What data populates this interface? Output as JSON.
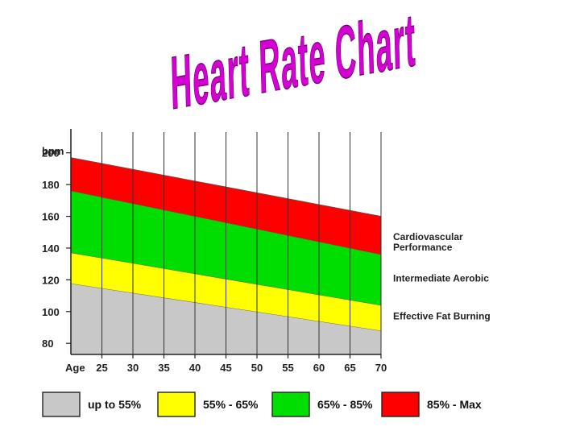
{
  "chart_data": {
    "type": "area",
    "title": "Heart Rate Chart",
    "xlabel": "Age",
    "ylabel": "bpm",
    "x": [
      20,
      25,
      30,
      35,
      40,
      45,
      50,
      55,
      60,
      65,
      70
    ],
    "xticks": [
      25,
      30,
      35,
      40,
      45,
      50,
      55,
      60,
      65,
      70
    ],
    "yticks": [
      80,
      100,
      120,
      140,
      160,
      180,
      200
    ],
    "xlim": [
      20,
      70
    ],
    "ylim": [
      73,
      210
    ],
    "grid": "vertical",
    "series": [
      {
        "name": "up to 55%",
        "color": "#c8c8c8",
        "from": [
          73,
          73
        ],
        "to": [
          117.7,
          88
        ]
      },
      {
        "name": "55% - 65%",
        "color": "#ffff00",
        "from": [
          117.7,
          88
        ],
        "to": [
          137.1,
          104
        ]
      },
      {
        "name": "65% - 85%",
        "color": "#00dd00",
        "from": [
          137.1,
          104
        ],
        "to": [
          176.1,
          136
        ]
      },
      {
        "name": "85% - Max",
        "color": "#ff0000",
        "from": [
          176.1,
          136
        ],
        "to": [
          197.0,
          160
        ]
      }
    ],
    "zone_labels": [
      {
        "text": "Cardiovascular Performance",
        "lines": [
          "Cardiovascular",
          "Performance"
        ],
        "at_bpm": 147
      },
      {
        "text": "Intermediate Aerobic",
        "lines": [
          "Intermediate Aerobic"
        ],
        "at_bpm": 121
      },
      {
        "text": "Effective Fat Burning",
        "lines": [
          "Effective Fat Burning"
        ],
        "at_bpm": 97
      }
    ],
    "legend": {
      "placement": "bottom",
      "entries": [
        {
          "label": "up to 55%",
          "color": "#c8c8c8"
        },
        {
          "label": "55% - 65%",
          "color": "#ffff00"
        },
        {
          "label": "65% - 85%",
          "color": "#00dd00"
        },
        {
          "label": "85% - Max",
          "color": "#ff0000"
        }
      ]
    },
    "title_color": "#d400d4"
  }
}
